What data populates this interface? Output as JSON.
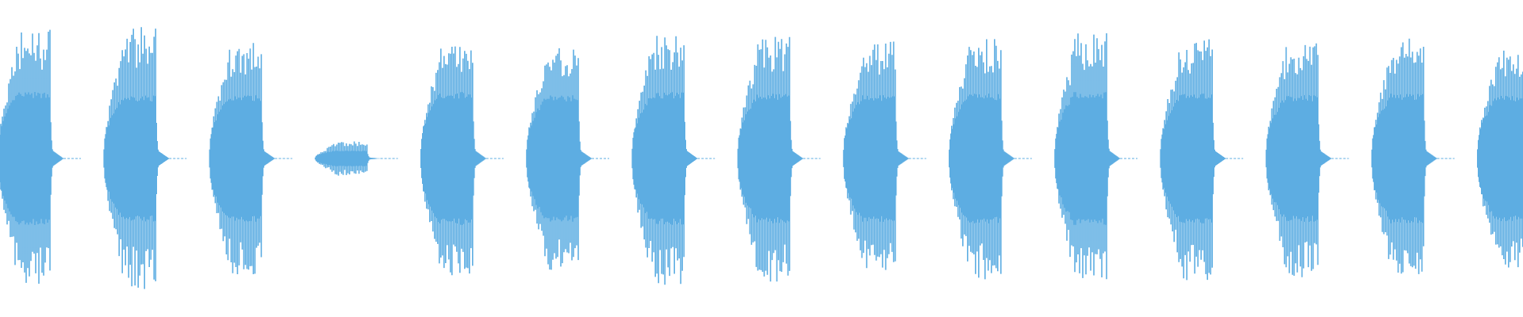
{
  "chart_data": {
    "type": "waveform",
    "color": "#5DADE2",
    "background": "#ffffff",
    "axes_visible": false,
    "grid": false,
    "amplitude_range": [
      -1,
      1
    ],
    "bursts": [
      {
        "index": 0,
        "peak": 0.82,
        "body": 0.42
      },
      {
        "index": 1,
        "peak": 0.83,
        "body": 0.4
      },
      {
        "index": 2,
        "peak": 0.74,
        "body": 0.4
      },
      {
        "index": 3,
        "peak": 0.11,
        "body": 0.05
      },
      {
        "index": 4,
        "peak": 0.74,
        "body": 0.42
      },
      {
        "index": 5,
        "peak": 0.71,
        "body": 0.4
      },
      {
        "index": 6,
        "peak": 0.81,
        "body": 0.42
      },
      {
        "index": 7,
        "peak": 0.78,
        "body": 0.41
      },
      {
        "index": 8,
        "peak": 0.74,
        "body": 0.4
      },
      {
        "index": 9,
        "peak": 0.77,
        "body": 0.41
      },
      {
        "index": 10,
        "peak": 0.8,
        "body": 0.42
      },
      {
        "index": 11,
        "peak": 0.77,
        "body": 0.41
      },
      {
        "index": 12,
        "peak": 0.75,
        "body": 0.4
      },
      {
        "index": 13,
        "peak": 0.77,
        "body": 0.41
      },
      {
        "index": 14,
        "peak": 0.69,
        "body": 0.4
      }
    ]
  }
}
